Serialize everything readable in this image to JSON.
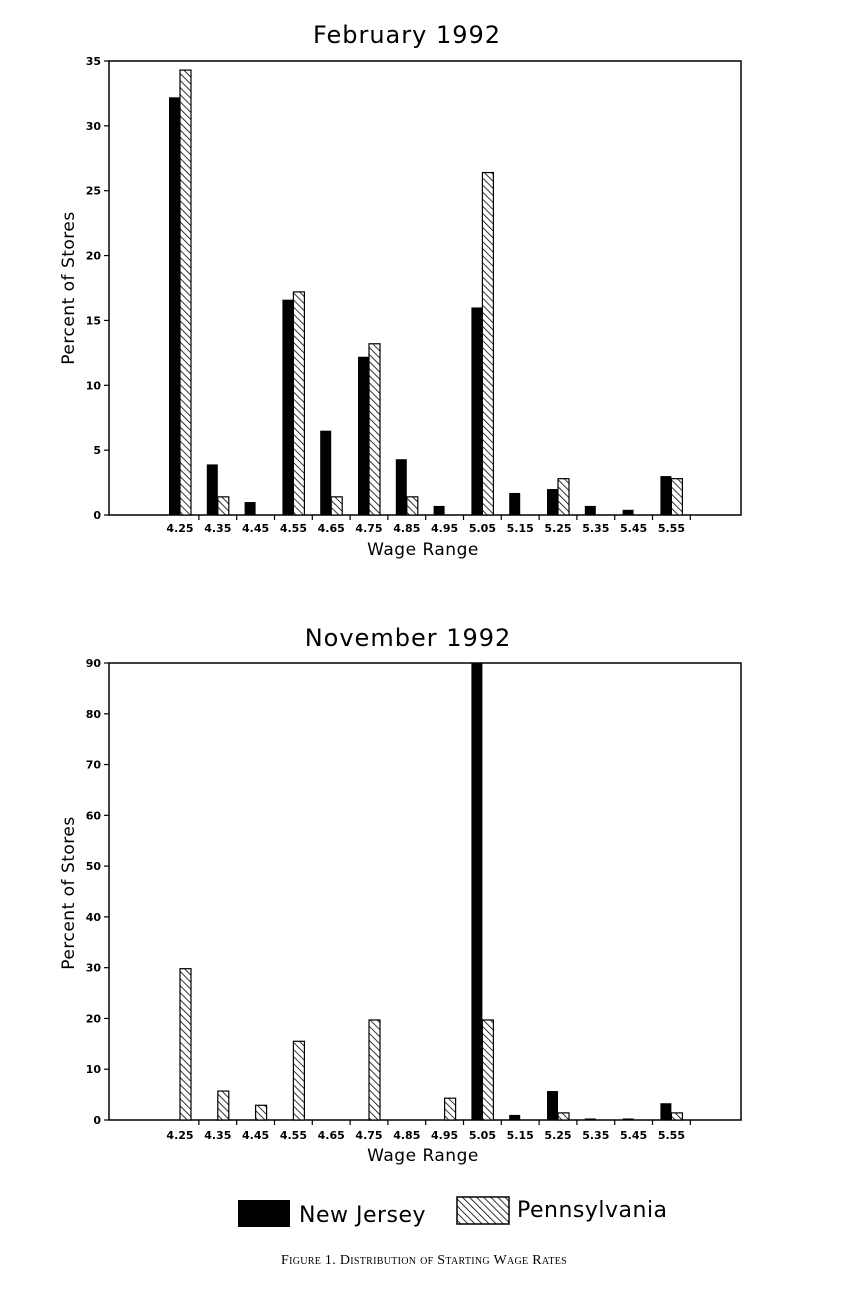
{
  "colors": {
    "new_jersey": "#000000",
    "pennsylvania_hatch": "#000000",
    "background": "#ffffff"
  },
  "legend": {
    "new_jersey": "New Jersey",
    "pennsylvania": "Pennsylvania"
  },
  "caption": "Figure 1. Distribution of Starting Wage Rates",
  "chart_data": [
    {
      "type": "bar",
      "title": "February 1992",
      "xlabel": "Wage Range",
      "ylabel": "Percent of Stores",
      "ylim": [
        0,
        35
      ],
      "yticks": [
        0,
        5,
        10,
        15,
        20,
        25,
        30,
        35
      ],
      "grid": false,
      "categories": [
        "4.25",
        "4.35",
        "4.45",
        "4.55",
        "4.65",
        "4.75",
        "4.85",
        "4.95",
        "5.05",
        "5.15",
        "5.25",
        "5.35",
        "5.45",
        "5.55"
      ],
      "series": [
        {
          "name": "New Jersey",
          "values": [
            32.2,
            3.9,
            1.0,
            16.6,
            6.5,
            12.2,
            4.3,
            0.7,
            16.0,
            1.7,
            2.0,
            0.7,
            0.4,
            3.0
          ]
        },
        {
          "name": "Pennsylvania",
          "values": [
            34.3,
            1.4,
            0,
            17.2,
            1.4,
            13.2,
            1.4,
            0,
            26.4,
            0,
            2.8,
            0,
            0,
            2.8
          ]
        }
      ]
    },
    {
      "type": "bar",
      "title": "November 1992",
      "xlabel": "Wage Range",
      "ylabel": "Percent of Stores",
      "ylim": [
        0,
        90
      ],
      "yticks": [
        0,
        10,
        20,
        30,
        40,
        50,
        60,
        70,
        80,
        90
      ],
      "grid": false,
      "categories": [
        "4.25",
        "4.35",
        "4.45",
        "4.55",
        "4.65",
        "4.75",
        "4.85",
        "4.95",
        "5.05",
        "5.15",
        "5.25",
        "5.35",
        "5.45",
        "5.55"
      ],
      "series": [
        {
          "name": "New Jersey",
          "values": [
            0,
            0,
            0,
            0,
            0,
            0,
            0,
            0,
            90.0,
            1.0,
            5.7,
            0.3,
            0.3,
            3.3
          ]
        },
        {
          "name": "Pennsylvania",
          "values": [
            29.8,
            5.7,
            2.9,
            15.5,
            0,
            19.7,
            0,
            4.3,
            19.7,
            0,
            1.4,
            0,
            0,
            1.4
          ]
        }
      ]
    }
  ]
}
